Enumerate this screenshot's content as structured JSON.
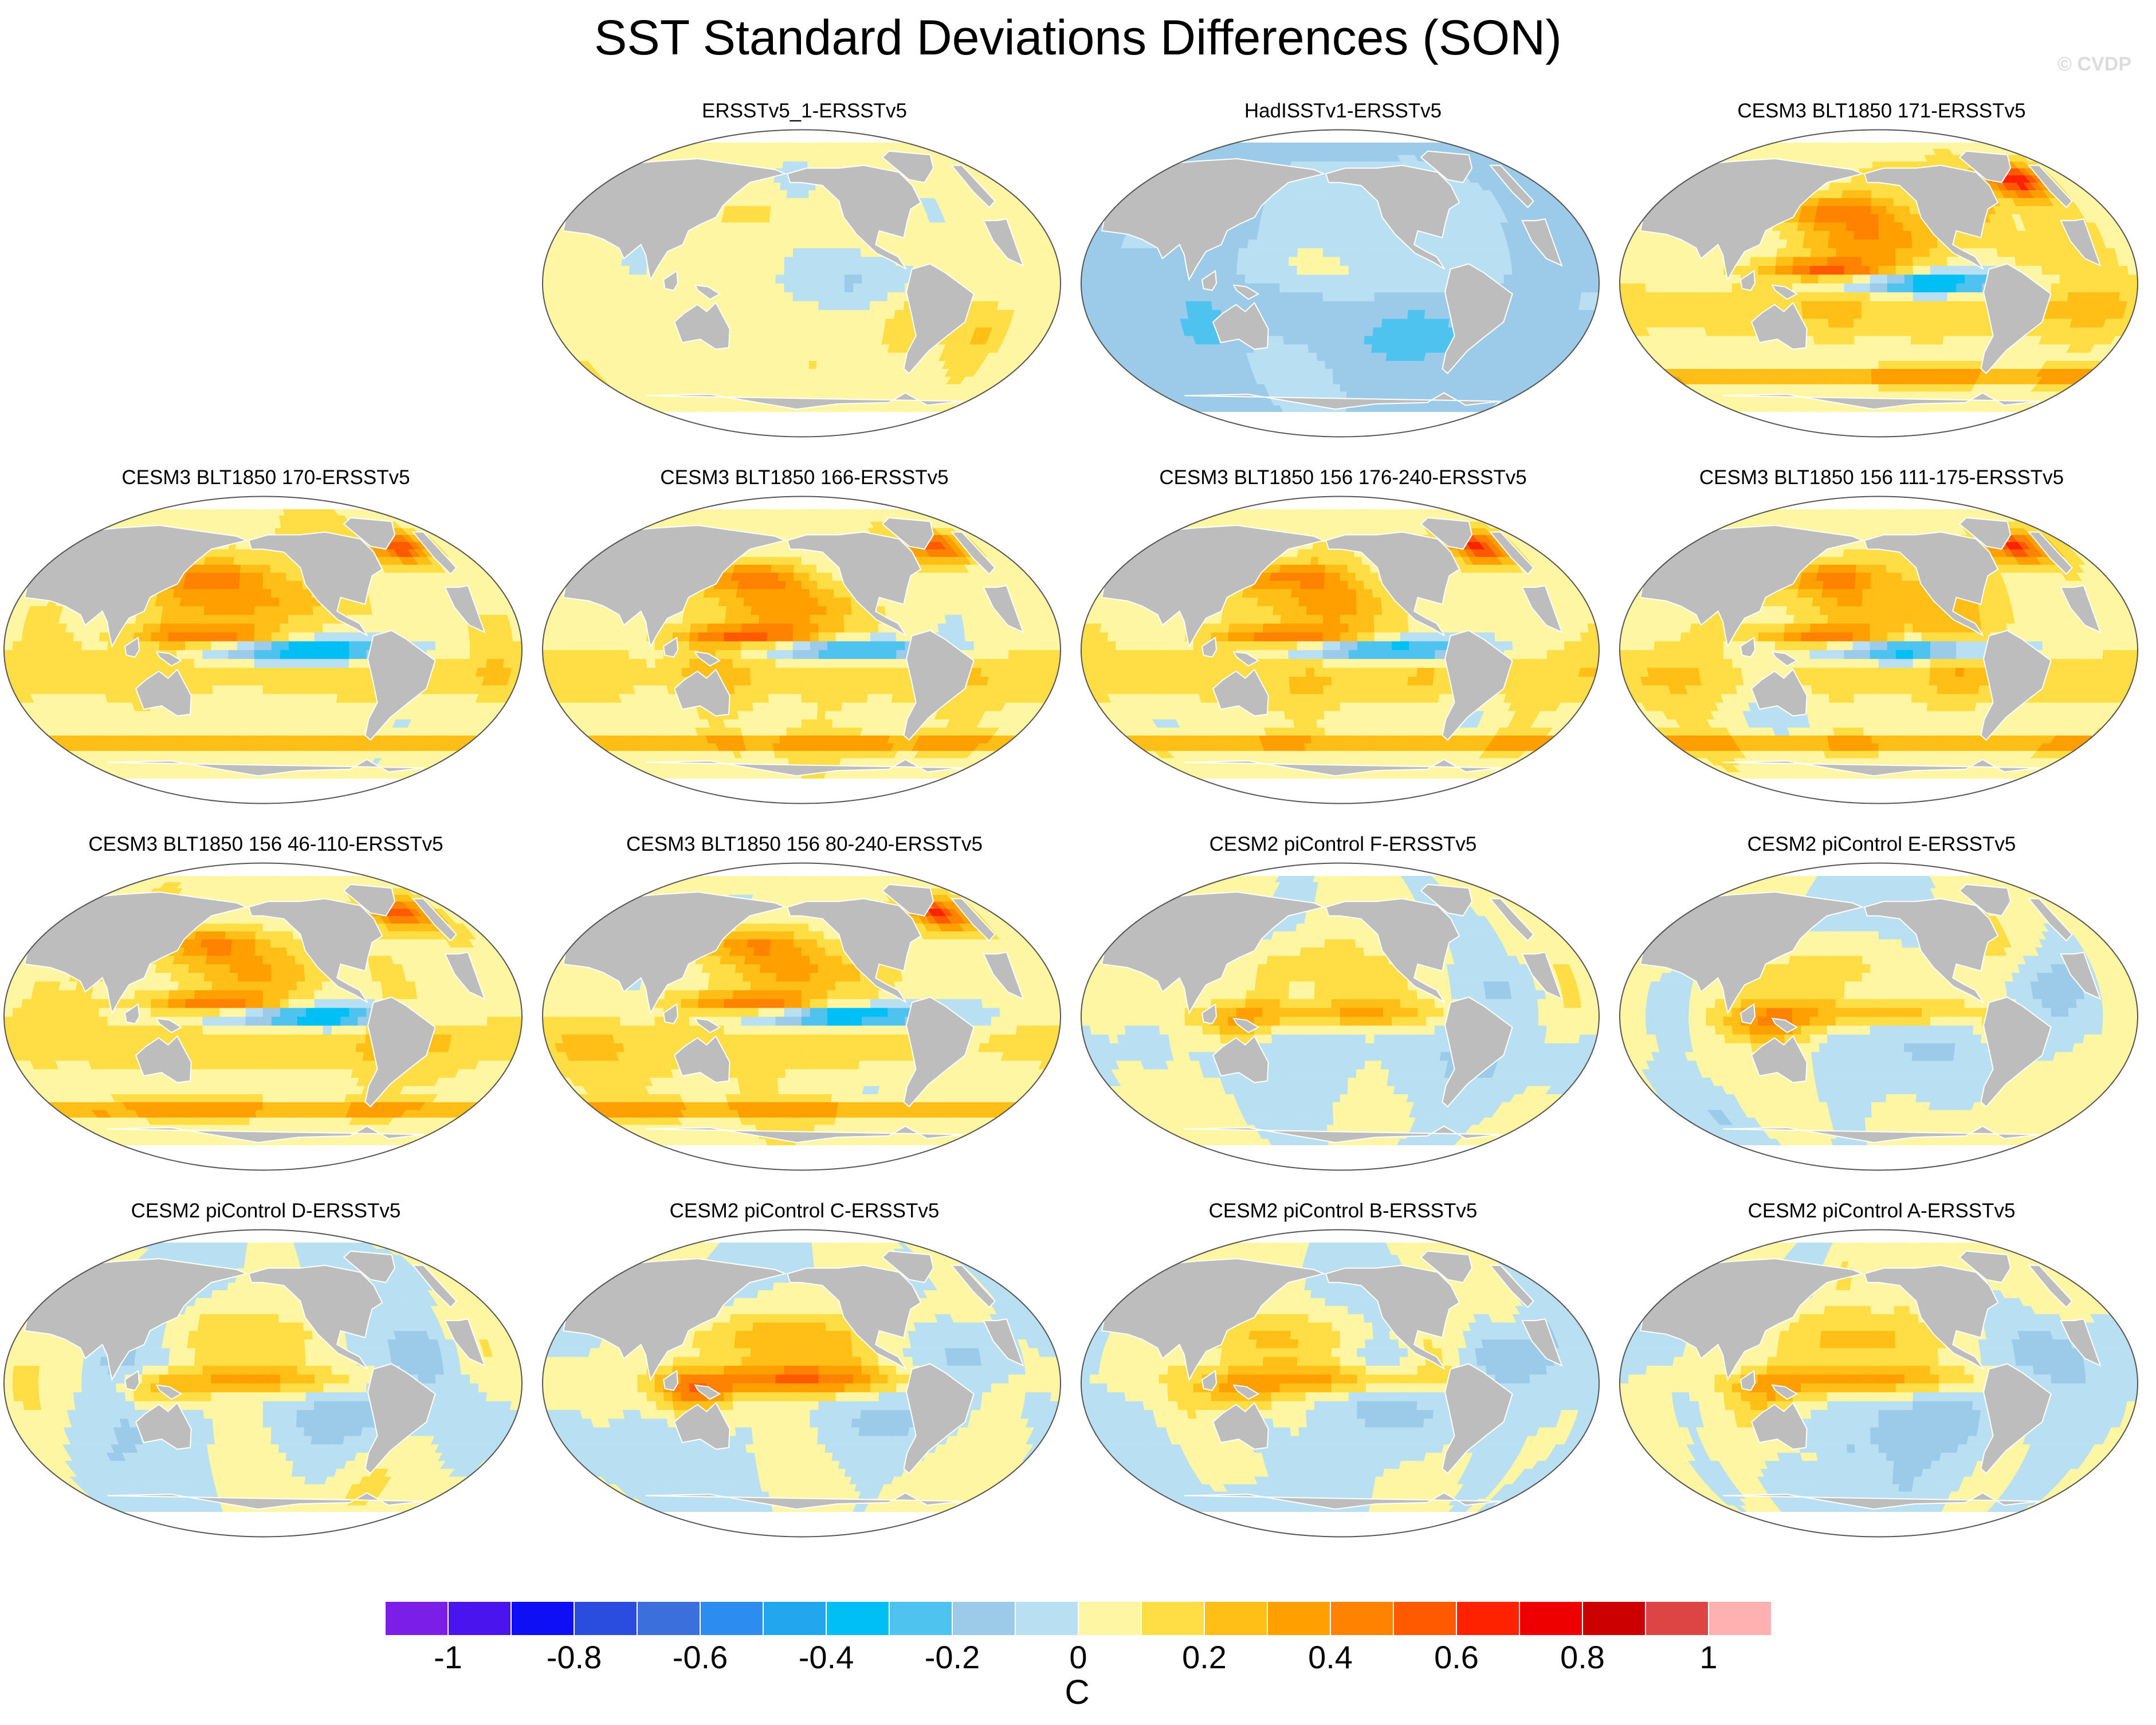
{
  "figure": {
    "title": "SST Standard Deviations Differences (SON)",
    "watermark": "© CVDP",
    "background_color": "#ffffff",
    "land_color": "#bdbdbd"
  },
  "chart_data": {
    "type": "heatmap",
    "title": "SST Standard Deviations Differences (SON)",
    "projection": "robinson",
    "layout": {
      "rows": 4,
      "columns": 4,
      "empty_first_cell": true
    },
    "units": "C",
    "panels": [
      {
        "title": "ERSSTv5_1-ERSSTv5",
        "pattern": "obs_ensemble"
      },
      {
        "title": "HadISSTv1-ERSSTv5",
        "pattern": "obs_hadisst"
      },
      {
        "title": "CESM3 BLT1850 171-ERSSTv5",
        "pattern": "cesm3"
      },
      {
        "title": "CESM3 BLT1850 170-ERSSTv5",
        "pattern": "cesm3"
      },
      {
        "title": "CESM3 BLT1850 166-ERSSTv5",
        "pattern": "cesm3"
      },
      {
        "title": "CESM3 BLT1850 156 176-240-ERSSTv5",
        "pattern": "cesm3"
      },
      {
        "title": "CESM3 BLT1850 156 111-175-ERSSTv5",
        "pattern": "cesm3"
      },
      {
        "title": "CESM3 BLT1850 156 46-110-ERSSTv5",
        "pattern": "cesm3"
      },
      {
        "title": "CESM3 BLT1850 156 80-240-ERSSTv5",
        "pattern": "cesm3"
      },
      {
        "title": "CESM2 piControl F-ERSSTv5",
        "pattern": "cesm2"
      },
      {
        "title": "CESM2 piControl E-ERSSTv5",
        "pattern": "cesm2"
      },
      {
        "title": "CESM2 piControl D-ERSSTv5",
        "pattern": "cesm2"
      },
      {
        "title": "CESM2 piControl C-ERSSTv5",
        "pattern": "cesm2_strong"
      },
      {
        "title": "CESM2 piControl B-ERSSTv5",
        "pattern": "cesm2"
      },
      {
        "title": "CESM2 piControl A-ERSSTv5",
        "pattern": "cesm2"
      }
    ],
    "colorbar": {
      "label": "C",
      "orientation": "horizontal",
      "ticks": [
        "-1",
        "-0.8",
        "-0.6",
        "-0.4",
        "-0.2",
        "0",
        "0.2",
        "0.4",
        "0.6",
        "0.8",
        "1"
      ],
      "tick_values": [
        -1,
        -0.8,
        -0.6,
        -0.4,
        -0.2,
        0,
        0.2,
        0.4,
        0.6,
        0.8,
        1
      ],
      "range": [
        -1.1,
        1.1
      ],
      "colors": [
        "#7b1ee8",
        "#4a14ef",
        "#0f0ff5",
        "#2a4de0",
        "#3b6fdc",
        "#2c8cf0",
        "#22a7ef",
        "#00bff5",
        "#4fc3ef",
        "#9ccbea",
        "#b9dff2",
        "#fff6a3",
        "#ffdd44",
        "#ffbf16",
        "#ff9f00",
        "#ff8200",
        "#ff5a00",
        "#ff2200",
        "#ee0000",
        "#cc0000",
        "#dd4444",
        "#ffb0b0"
      ]
    }
  }
}
